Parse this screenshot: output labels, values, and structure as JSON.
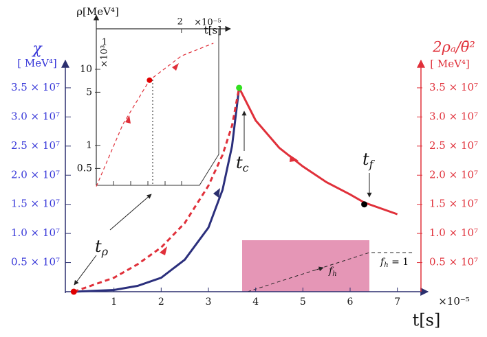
{
  "chart_data": [
    {
      "type": "line",
      "x_label": "t[s]",
      "x_multiplier": "×10⁻⁵",
      "y_label": "χ",
      "y_unit": "[ MeV⁴]",
      "y2_label": "2ρₐ/θ̄²",
      "y2_unit": "[ MeV⁴]",
      "xlim": [
        0,
        7.5
      ],
      "xticks": [
        1,
        2,
        3,
        4,
        5,
        6,
        7
      ],
      "ylim": [
        0,
        39000000
      ],
      "yticks": [
        {
          "value": 5000000,
          "label": "0.5 × 10⁷"
        },
        {
          "value": 10000000,
          "label": "1.0 × 10⁷"
        },
        {
          "value": 15000000,
          "label": "1.5 × 10⁷"
        },
        {
          "value": 20000000,
          "label": "2.0 × 10⁷"
        },
        {
          "value": 25000000,
          "label": "2.5 × 10⁷"
        },
        {
          "value": 30000000,
          "label": "3.0 × 10⁷"
        },
        {
          "value": 35000000,
          "label": "3.5 × 10⁷"
        }
      ],
      "y2lim": [
        0,
        39000000
      ],
      "y2ticks": [
        {
          "value": 5000000,
          "label": "0.5 × 10⁷"
        },
        {
          "value": 10000000,
          "label": "1.0 × 10⁷"
        },
        {
          "value": 15000000,
          "label": "1.5 × 10⁷"
        },
        {
          "value": 20000000,
          "label": "2.0 × 10⁷"
        },
        {
          "value": 25000000,
          "label": "2.5 × 10⁷"
        },
        {
          "value": 30000000,
          "label": "3.0 × 10⁷"
        },
        {
          "value": 35000000,
          "label": "3.5 × 10⁷"
        }
      ],
      "series": [
        {
          "color": "#2b2f7c",
          "dashed": false,
          "x": [
            0.15,
            1,
            1.5,
            2,
            2.5,
            3,
            3.3,
            3.5,
            3.65
          ],
          "values": [
            0,
            300000,
            1000000,
            2400000,
            5500000,
            11000000,
            17500000,
            25000000,
            35000000
          ]
        },
        {
          "color": "#e0303a",
          "dashed": true,
          "axis": "y2",
          "x": [
            0.15,
            1,
            1.5,
            2,
            2.5,
            3,
            3.3,
            3.5,
            3.65
          ],
          "values": [
            0,
            2400000,
            4700000,
            7600000,
            11800000,
            18200000,
            23500000,
            28500000,
            35000000
          ]
        },
        {
          "color": "#e0303a",
          "dashed": false,
          "axis": "y2",
          "x": [
            3.65,
            4,
            4.5,
            5,
            5.5,
            6,
            6.3,
            7
          ],
          "values": [
            35000000,
            29400000,
            24700000,
            21500000,
            18800000,
            16700000,
            15300000,
            13300000
          ]
        }
      ],
      "markers": [
        {
          "x": 0.15,
          "value": 0,
          "color": "#e00000"
        },
        {
          "x": 3.65,
          "value": 35000000,
          "color": "#33e020"
        },
        {
          "x": 6.3,
          "value": 15000000,
          "color": "#000000"
        }
      ],
      "annotations": [
        {
          "text": "t",
          "sub": "ρ"
        },
        {
          "text": "t",
          "sub": "c"
        },
        {
          "text": "t",
          "sub": "f"
        },
        {
          "text": "f",
          "sub": "h"
        },
        {
          "text": "f",
          "sub": "h",
          "after": " = 1"
        }
      ]
    },
    {
      "type": "line",
      "yscale": "log",
      "y_label": "ρ[MeV⁴]",
      "x_label": "t[s]",
      "x_multiplier": "×10⁻⁵",
      "y_multiplier": "×10³",
      "corner_label": "1",
      "xlim": [
        1.2,
        2.35
      ],
      "xticks": [
        2
      ],
      "ylim": [
        0.3,
        34
      ],
      "yticks": [
        0.5,
        1,
        5,
        10
      ],
      "series": [
        {
          "color": "#e0303a",
          "dashed": true,
          "x": [
            1.2,
            1.45,
            1.7,
            2.0,
            2.3
          ],
          "values": [
            0.29,
            1.9,
            7.2,
            15,
            22
          ]
        }
      ],
      "markers": [
        {
          "x": 1.7,
          "value": 7.2,
          "color": "#e00000"
        }
      ]
    }
  ]
}
